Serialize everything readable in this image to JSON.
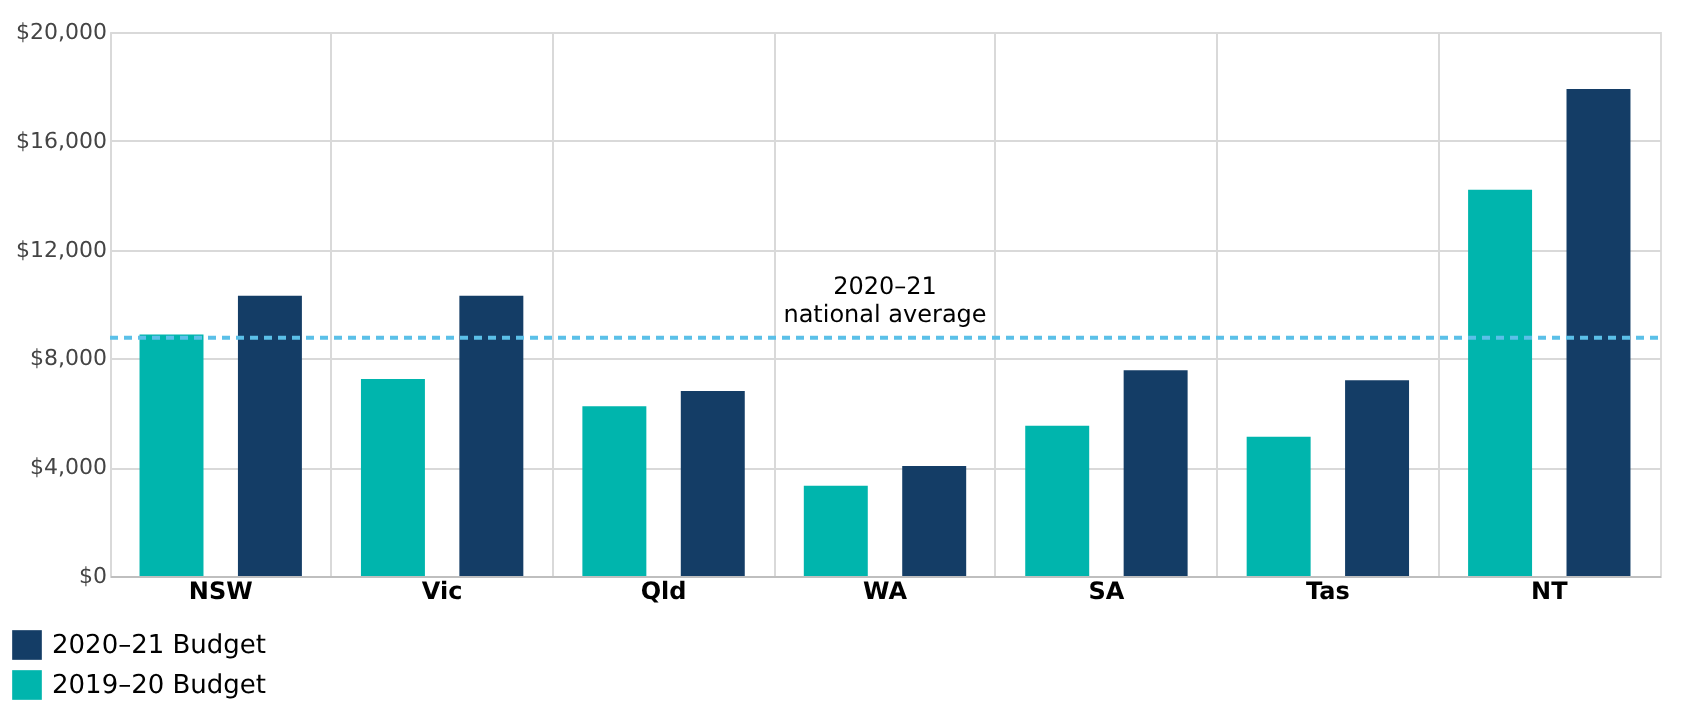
{
  "chart_data": {
    "type": "bar",
    "categories": [
      "NSW",
      "Vic",
      "Qld",
      "WA",
      "SA",
      "Tas",
      "NT"
    ],
    "series": [
      {
        "name": "2019–20 Budget",
        "color": "#00b5ad",
        "values": [
          8880,
          7240,
          6240,
          3320,
          5520,
          5120,
          14200
        ]
      },
      {
        "name": "2020–21 Budget",
        "color": "#143d66",
        "values": [
          10300,
          10300,
          6800,
          4040,
          7560,
          7200,
          17900
        ]
      }
    ],
    "ylim": [
      0,
      20000
    ],
    "yticks": [
      {
        "value": 0,
        "label": "$0"
      },
      {
        "value": 4000,
        "label": "$4,000"
      },
      {
        "value": 8000,
        "label": "$8,000"
      },
      {
        "value": 12000,
        "label": "$12,000"
      },
      {
        "value": 16000,
        "label": "$16,000"
      },
      {
        "value": 20000,
        "label": "$20,000"
      }
    ],
    "ref_lines": [
      {
        "axis": "y",
        "value": 8760,
        "label": "2020–21\nnational average",
        "color": "#5bc0e8",
        "line_style": "dashed"
      }
    ],
    "grid": true,
    "legend": "bottom left"
  }
}
